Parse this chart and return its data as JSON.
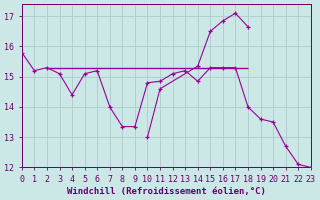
{
  "xlabel": "Windchill (Refroidissement éolien,°C)",
  "xlim": [
    0,
    23
  ],
  "ylim": [
    12,
    17.4
  ],
  "yticks": [
    12,
    13,
    14,
    15,
    16,
    17
  ],
  "xticks": [
    0,
    1,
    2,
    3,
    4,
    5,
    6,
    7,
    8,
    9,
    10,
    11,
    12,
    13,
    14,
    15,
    16,
    17,
    18,
    19,
    20,
    21,
    22,
    23
  ],
  "bg_color": "#cce8e6",
  "grid_color": "#aaccca",
  "line_color": "#990099",
  "marker": "+",
  "line1_x": [
    0,
    1,
    2,
    3,
    4,
    5,
    6,
    7,
    8,
    9,
    10,
    11,
    12,
    13,
    14,
    15,
    16,
    17,
    18,
    19,
    20,
    21,
    22,
    23
  ],
  "line1_y": [
    15.8,
    15.2,
    15.3,
    15.1,
    14.4,
    15.1,
    15.2,
    14.0,
    13.35,
    13.35,
    14.8,
    14.85,
    15.1,
    15.2,
    14.85,
    15.3,
    15.3,
    15.3,
    14.0,
    13.6,
    13.5,
    12.7,
    12.1,
    12.0
  ],
  "line2_x": [
    10,
    11,
    14,
    15,
    16,
    17,
    18
  ],
  "line2_y": [
    13.0,
    14.6,
    15.35,
    16.5,
    16.85,
    17.1,
    16.65
  ],
  "hline_x1": 2,
  "hline_x2": 18,
  "hline_y": 15.3,
  "axis_color": "#660066",
  "tick_color": "#660066",
  "label_fontsize": 6.5,
  "tick_fontsize": 6.0
}
